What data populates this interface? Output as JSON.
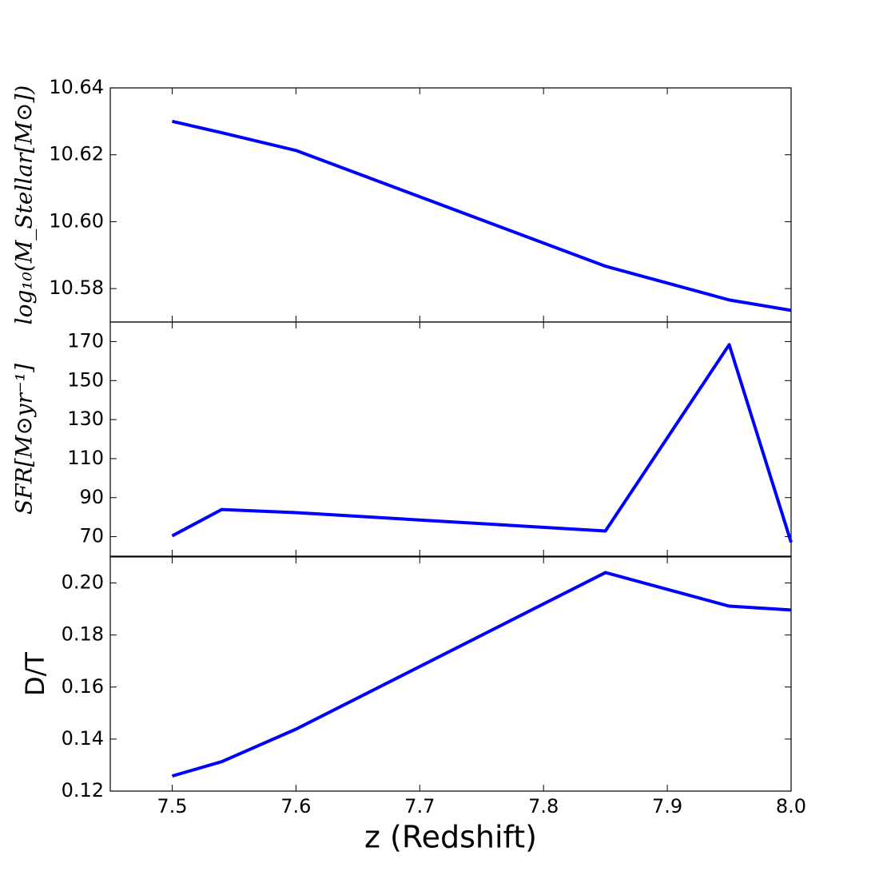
{
  "chart_data": [
    {
      "type": "line",
      "ylabel": "log₁₀(M_Stellar[M⊙])",
      "x": [
        7.5,
        7.54,
        7.6,
        7.85,
        7.95,
        8.0
      ],
      "values": [
        10.63,
        10.6266,
        10.6213,
        10.5867,
        10.5766,
        10.5735
      ],
      "color": "#0000ff",
      "xlim": [
        7.45,
        8.0
      ],
      "xticks": [
        7.5,
        7.6,
        7.7,
        7.8,
        7.9,
        8.0
      ],
      "ylim": [
        10.57,
        10.64
      ],
      "yticks": [
        10.58,
        {
          "value": 10.6,
          "label": "10.60"
        },
        10.62,
        10.64
      ]
    },
    {
      "type": "line",
      "ylabel": "SFR[M⊙yr⁻¹]",
      "x": [
        7.5,
        7.54,
        7.6,
        7.85,
        7.95,
        8.0
      ],
      "values": [
        70.4,
        83.9,
        82.3,
        72.9,
        168.4,
        67.1
      ],
      "color": "#0000ff",
      "xlim": [
        7.45,
        8.0
      ],
      "xticks": [
        7.5,
        7.6,
        7.7,
        7.8,
        7.9,
        8.0
      ],
      "ylim": [
        60,
        180
      ],
      "yticks": [
        70,
        90,
        110,
        130,
        150,
        170
      ]
    },
    {
      "type": "line",
      "ylabel": "D/T",
      "xlabel": "z (Redshift)",
      "x": [
        7.5,
        7.54,
        7.6,
        7.85,
        7.95,
        8.0
      ],
      "values": [
        0.1258,
        0.1313,
        0.1438,
        0.204,
        0.1911,
        0.1896
      ],
      "color": "#0000ff",
      "xlim": [
        7.45,
        8.0
      ],
      "xticks": [
        7.5,
        7.6,
        7.7,
        7.8,
        7.9,
        {
          "value": 8.0,
          "label": "8.0"
        }
      ],
      "ylim": [
        0.12,
        0.21
      ],
      "yticks": [
        0.12,
        0.14,
        0.16,
        0.18,
        {
          "value": 0.2,
          "label": "0.20"
        }
      ]
    }
  ]
}
